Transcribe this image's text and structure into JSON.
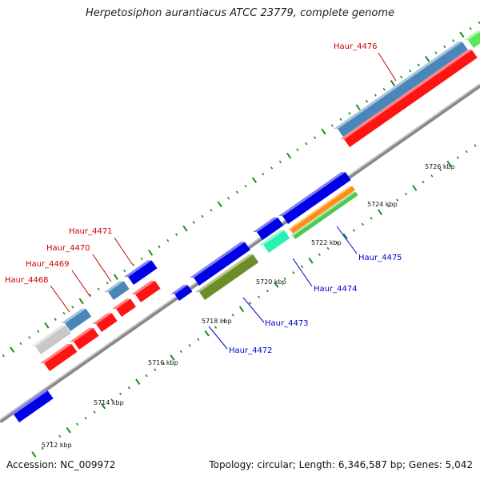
{
  "title": "Herpetosiphon aurantiacus ATCC 23779, complete genome",
  "footer": {
    "accession": "Accession: NC_009972",
    "stats": "Topology: circular; Length: 6,346,587 bp; Genes: 5,042"
  },
  "ticks": [
    "5712 kbp",
    "5714 kbp",
    "5716 kbp",
    "5718 kbp",
    "5720 kbp",
    "5722 kbp",
    "5724 kbp",
    "5726 kbp"
  ],
  "gene_labels": [
    "Haur_4468",
    "Haur_4469",
    "Haur_4470",
    "Haur_4471",
    "Haur_4472",
    "Haur_4473",
    "Haur_4474",
    "Haur_4475",
    "Haur_4476"
  ],
  "colors": {
    "red": "#ff1414",
    "blue": "#0000e6",
    "steelblue": "#4a86b8",
    "gray": "#c8c8c8",
    "olive": "#6e8c28",
    "orange": "#ff8c14",
    "green": "#50c850",
    "aqua": "#28f0b4",
    "lime": "#5ae65a",
    "backbone": "#888888",
    "tick": "#1e8c1e",
    "label_fwd": "#cc0000",
    "label_rev": "#0000cc"
  }
}
